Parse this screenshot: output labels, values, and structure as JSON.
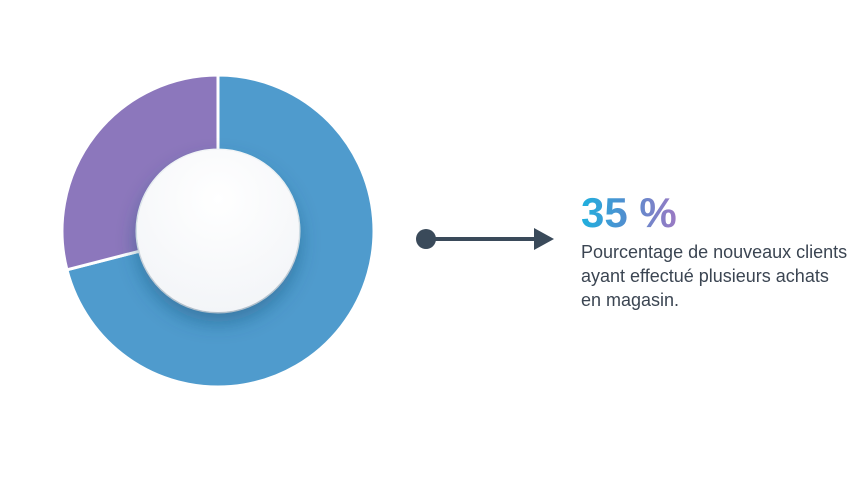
{
  "chart_data": {
    "type": "pie",
    "variant": "donut",
    "slices": [
      {
        "value": 71,
        "color": "#4f9bcd"
      },
      {
        "value": 29,
        "color": "#8c77bc"
      }
    ]
  },
  "callout": {
    "value": "35 %",
    "description": "Pourcentage de nouveaux clients ayant effectué plusieurs achats en magasin.",
    "arrow_color": "#3a4a5a",
    "gradient": [
      "#1fb0de",
      "#9b79c3"
    ]
  }
}
